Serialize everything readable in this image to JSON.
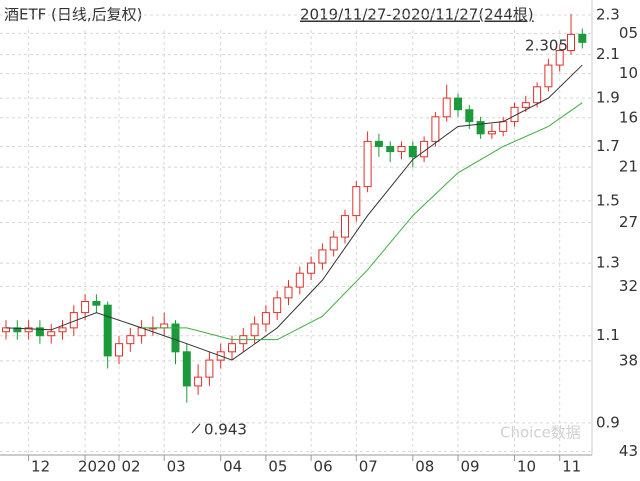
{
  "chart_data": {
    "type": "candlestick",
    "title": "酒ETF (日线,后复权)",
    "subtitle": "2019/11/27-2020/11/27(244根)",
    "log_scale": true,
    "grid": true,
    "up_color": "#e0302a",
    "down_color": "#1a9a3a",
    "open": [
      1.11,
      1.12,
      1.11,
      1.12,
      1.1,
      1.11,
      1.12,
      1.16,
      1.19,
      1.18,
      1.05,
      1.08,
      1.1,
      1.12,
      1.12,
      1.13,
      1.06,
      0.98,
      1.0,
      1.04,
      1.06,
      1.08,
      1.1,
      1.13,
      1.16,
      1.2,
      1.23,
      1.27,
      1.3,
      1.34,
      1.38,
      1.45,
      1.55,
      1.72,
      1.7,
      1.68,
      1.7,
      1.66,
      1.72,
      1.82,
      1.9,
      1.85,
      1.8,
      1.75,
      1.76,
      1.8,
      1.86,
      1.88,
      1.95,
      2.05,
      2.12,
      2.2
    ],
    "high": [
      1.14,
      1.14,
      1.14,
      1.14,
      1.13,
      1.14,
      1.18,
      1.21,
      1.21,
      1.19,
      1.1,
      1.12,
      1.14,
      1.15,
      1.16,
      1.14,
      1.08,
      1.03,
      1.06,
      1.08,
      1.1,
      1.12,
      1.15,
      1.18,
      1.22,
      1.25,
      1.29,
      1.32,
      1.36,
      1.4,
      1.47,
      1.57,
      1.76,
      1.75,
      1.72,
      1.72,
      1.72,
      1.74,
      1.84,
      1.96,
      1.92,
      1.87,
      1.82,
      1.79,
      1.82,
      1.88,
      1.91,
      1.97,
      2.08,
      2.15,
      2.305,
      2.23
    ],
    "low": [
      1.09,
      1.09,
      1.09,
      1.08,
      1.08,
      1.09,
      1.1,
      1.14,
      1.16,
      1.02,
      1.03,
      1.06,
      1.08,
      1.1,
      1.1,
      1.03,
      0.943,
      0.96,
      0.98,
      1.02,
      1.04,
      1.06,
      1.08,
      1.11,
      1.14,
      1.18,
      1.21,
      1.25,
      1.28,
      1.32,
      1.36,
      1.43,
      1.53,
      1.66,
      1.64,
      1.65,
      1.62,
      1.64,
      1.7,
      1.8,
      1.82,
      1.77,
      1.73,
      1.73,
      1.74,
      1.78,
      1.84,
      1.86,
      1.93,
      2.02,
      2.1,
      2.13
    ],
    "close": [
      1.12,
      1.11,
      1.12,
      1.1,
      1.11,
      1.12,
      1.16,
      1.19,
      1.18,
      1.05,
      1.08,
      1.1,
      1.12,
      1.12,
      1.13,
      1.06,
      0.98,
      1.0,
      1.04,
      1.06,
      1.08,
      1.1,
      1.13,
      1.16,
      1.2,
      1.23,
      1.27,
      1.3,
      1.34,
      1.38,
      1.45,
      1.55,
      1.72,
      1.7,
      1.68,
      1.7,
      1.66,
      1.72,
      1.82,
      1.9,
      1.85,
      1.8,
      1.75,
      1.76,
      1.8,
      1.86,
      1.88,
      1.95,
      2.05,
      2.12,
      2.2,
      2.16
    ],
    "series": [
      {
        "color": "#333333",
        "x": [
          0,
          4,
          8,
          12,
          16,
          20,
          24,
          28,
          32,
          36,
          40,
          44,
          48,
          51
        ],
        "values": [
          1.12,
          1.115,
          1.16,
          1.12,
          1.08,
          1.04,
          1.12,
          1.25,
          1.45,
          1.65,
          1.78,
          1.8,
          1.9,
          2.05
        ]
      },
      {
        "color": "#3cb03c",
        "x": [
          12,
          16,
          20,
          24,
          28,
          32,
          36,
          40,
          44,
          48,
          51
        ],
        "values": [
          1.12,
          1.12,
          1.09,
          1.09,
          1.15,
          1.28,
          1.45,
          1.6,
          1.7,
          1.78,
          1.88
        ]
      }
    ],
    "ylim": [
      0.836,
      2.381
    ],
    "yticks": [
      2.3,
      {
        "value": 2.205,
        "label": "05"
      },
      2.1,
      {
        "value": 2.01,
        "label": "10"
      },
      1.9,
      {
        "value": 1.816,
        "label": "16"
      },
      1.7,
      {
        "value": 1.621,
        "label": "21"
      },
      1.5,
      {
        "value": 1.427,
        "label": "27"
      },
      1.3,
      {
        "value": 1.232,
        "label": "32"
      },
      1.1,
      {
        "value": 1.038,
        "label": "38"
      },
      0.9,
      {
        "value": 0.843,
        "label": "43"
      }
    ],
    "xticks": [
      {
        "value": 2,
        "label": "12"
      },
      {
        "value": 7,
        "label": "2020"
      },
      {
        "value": 10,
        "label": "02"
      },
      {
        "value": 14,
        "label": "03"
      },
      {
        "value": 19,
        "label": "04"
      },
      {
        "value": 23,
        "label": "05"
      },
      {
        "value": 27,
        "label": "06"
      },
      {
        "value": 31,
        "label": "07"
      },
      {
        "value": 36,
        "label": "08"
      },
      {
        "value": 40,
        "label": "09"
      },
      {
        "value": 45,
        "label": "10"
      },
      {
        "value": 49,
        "label": "11"
      }
    ],
    "annotations": [
      {
        "text": "2.305"
      },
      {
        "text": "0.943"
      }
    ],
    "watermark": "Choice数据"
  }
}
